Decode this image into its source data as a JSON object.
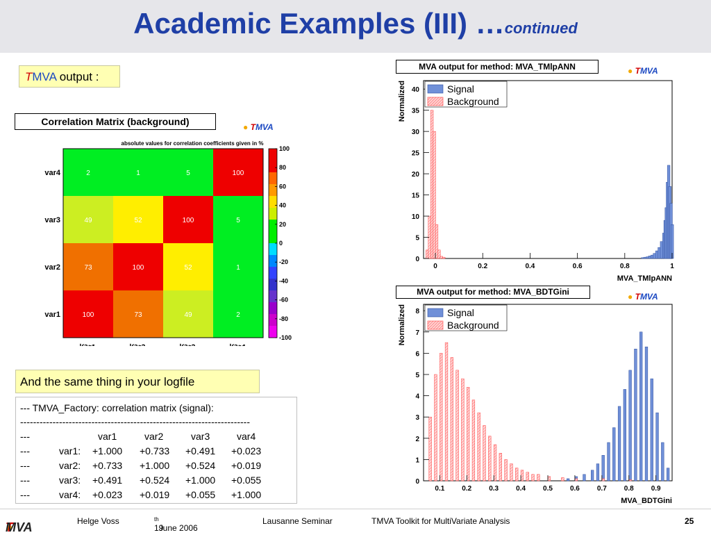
{
  "slide": {
    "title": "Academic Examples (III) …",
    "title_suffix": "continued",
    "page_number": "25"
  },
  "labels": {
    "tmva_output_t": "T",
    "tmva_output_mva": "MVA",
    "tmva_output_rest": " output :",
    "logfile_note": "And the same thing in your logfile"
  },
  "logos": {
    "tmva_t": "T",
    "tmva_mva": "MVA",
    "footer_t": "T",
    "footer_mva": "MVA"
  },
  "correlation_matrix": {
    "box_title": "Correlation Matrix (background)",
    "subtitle": "absolute values for correlation coefficients given in %",
    "variables": [
      "var1",
      "var2",
      "var3",
      "var4"
    ],
    "values": [
      [
        100,
        73,
        49,
        2
      ],
      [
        73,
        100,
        52,
        1
      ],
      [
        49,
        52,
        100,
        5
      ],
      [
        2,
        1,
        5,
        100
      ]
    ],
    "colorbar_ticks": [
      "100",
      "80",
      "60",
      "40",
      "20",
      "0",
      "-20",
      "-40",
      "-60",
      "-80",
      "-100"
    ],
    "colorbar_colors": [
      "#ee0000",
      "#ee0000",
      "#ff6600",
      "#ff9900",
      "#ffdd00",
      "#ccee00",
      "#00ee00",
      "#00ee00",
      "#00ddff",
      "#0088ff",
      "#3344ff",
      "#3333cc",
      "#6633cc",
      "#9900cc",
      "#cc00cc",
      "#ee00ee"
    ]
  },
  "chart_data": [
    {
      "type": "histogram",
      "box_title": "MVA output for method: MVA_TMlpANN",
      "xlabel": "MVA_TMlpANN",
      "ylabel": "Normalized",
      "xlim": [
        -0.05,
        1.0
      ],
      "ylim": [
        0,
        42
      ],
      "xticks": [
        "0",
        "0.2",
        "0.4",
        "0.6",
        "0.8",
        "1"
      ],
      "yticks": [
        "0",
        "5",
        "10",
        "15",
        "20",
        "25",
        "30",
        "35",
        "40"
      ],
      "legend": [
        "Signal",
        "Background"
      ],
      "legend_position": "top-left",
      "series": [
        {
          "name": "Signal",
          "color": "#7090d8",
          "bins": [
            [
              0.87,
              0.2
            ],
            [
              0.88,
              0.3
            ],
            [
              0.89,
              0.4
            ],
            [
              0.9,
              0.6
            ],
            [
              0.91,
              0.8
            ],
            [
              0.92,
              1.2
            ],
            [
              0.93,
              1.8
            ],
            [
              0.94,
              2.6
            ],
            [
              0.95,
              4
            ],
            [
              0.96,
              6
            ],
            [
              0.965,
              9
            ],
            [
              0.97,
              12
            ],
            [
              0.975,
              18
            ],
            [
              0.98,
              22
            ],
            [
              0.985,
              17
            ],
            [
              0.99,
              13
            ],
            [
              0.995,
              8
            ]
          ]
        },
        {
          "name": "Background",
          "color": "#ffb0b0",
          "bins": [
            [
              -0.04,
              2
            ],
            [
              -0.03,
              10
            ],
            [
              -0.02,
              35
            ],
            [
              -0.01,
              30
            ],
            [
              0.0,
              8
            ],
            [
              0.01,
              2
            ],
            [
              0.02,
              0.5
            ],
            [
              0.03,
              0.3
            ]
          ]
        }
      ]
    },
    {
      "type": "histogram",
      "box_title": "MVA output for method: MVA_BDTGini",
      "xlabel": "MVA_BDTGini",
      "ylabel": "Normalized",
      "xlim": [
        0.04,
        0.96
      ],
      "ylim": [
        0,
        8.3
      ],
      "xticks": [
        "0.1",
        "0.2",
        "0.3",
        "0.4",
        "0.5",
        "0.6",
        "0.7",
        "0.8",
        "0.9"
      ],
      "yticks": [
        "0",
        "1",
        "2",
        "3",
        "4",
        "5",
        "6",
        "7",
        "8"
      ],
      "legend": [
        "Signal",
        "Background"
      ],
      "legend_position": "top-left",
      "series": [
        {
          "name": "Signal",
          "color": "#7090d8",
          "bins": [
            [
              0.57,
              0.1
            ],
            [
              0.6,
              0.2
            ],
            [
              0.63,
              0.3
            ],
            [
              0.66,
              0.5
            ],
            [
              0.68,
              0.8
            ],
            [
              0.7,
              1.2
            ],
            [
              0.72,
              1.8
            ],
            [
              0.74,
              2.5
            ],
            [
              0.76,
              3.5
            ],
            [
              0.78,
              4.3
            ],
            [
              0.8,
              5.2
            ],
            [
              0.82,
              6.2
            ],
            [
              0.84,
              7.0
            ],
            [
              0.86,
              6.3
            ],
            [
              0.88,
              4.8
            ],
            [
              0.9,
              3.2
            ],
            [
              0.92,
              1.8
            ],
            [
              0.94,
              0.6
            ]
          ]
        },
        {
          "name": "Background",
          "color": "#ffb0b0",
          "bins": [
            [
              0.06,
              3.0
            ],
            [
              0.08,
              5.0
            ],
            [
              0.1,
              6.0
            ],
            [
              0.12,
              6.5
            ],
            [
              0.14,
              5.8
            ],
            [
              0.16,
              5.2
            ],
            [
              0.18,
              4.8
            ],
            [
              0.2,
              4.4
            ],
            [
              0.22,
              3.8
            ],
            [
              0.24,
              3.2
            ],
            [
              0.26,
              2.6
            ],
            [
              0.28,
              2.1
            ],
            [
              0.3,
              1.7
            ],
            [
              0.32,
              1.3
            ],
            [
              0.34,
              1.0
            ],
            [
              0.36,
              0.8
            ],
            [
              0.38,
              0.6
            ],
            [
              0.4,
              0.5
            ],
            [
              0.42,
              0.4
            ],
            [
              0.44,
              0.3
            ],
            [
              0.46,
              0.3
            ],
            [
              0.5,
              0.2
            ],
            [
              0.55,
              0.15
            ],
            [
              0.6,
              0.1
            ],
            [
              0.7,
              0.1
            ],
            [
              0.8,
              0.05
            ]
          ]
        }
      ]
    }
  ],
  "logfile": {
    "header": "--- TMVA_Factory: correlation matrix (signal):",
    "separator": "-----------------------------------------------------------------------",
    "columns": [
      "---",
      "var1",
      "var2",
      "var3",
      "var4"
    ],
    "rows": [
      [
        "---",
        "var1:",
        "+1.000",
        "+0.733",
        "+0.491",
        "+0.023"
      ],
      [
        "---",
        "var2:",
        "+0.733",
        "+1.000",
        "+0.524",
        "+0.019"
      ],
      [
        "---",
        "var3:",
        "+0.491",
        "+0.524",
        "+1.000",
        "+0.055"
      ],
      [
        "---",
        "var4:",
        "+0.023",
        "+0.019",
        "+0.055",
        "+1.000"
      ]
    ]
  },
  "footer": {
    "author": "Helge Voss",
    "date_day": "19",
    "date_sup": "th",
    "date_rest": " June 2006",
    "event": "Lausanne Seminar",
    "talk": "TMVA Toolkit for MultiVariate Analysis"
  }
}
